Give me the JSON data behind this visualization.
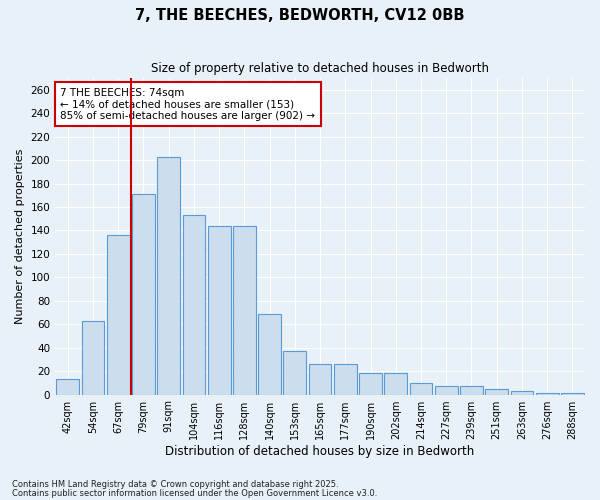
{
  "title1": "7, THE BEECHES, BEDWORTH, CV12 0BB",
  "title2": "Size of property relative to detached houses in Bedworth",
  "xlabel": "Distribution of detached houses by size in Bedworth",
  "ylabel": "Number of detached properties",
  "bar_labels": [
    "42sqm",
    "54sqm",
    "67sqm",
    "79sqm",
    "91sqm",
    "104sqm",
    "116sqm",
    "128sqm",
    "140sqm",
    "153sqm",
    "165sqm",
    "177sqm",
    "190sqm",
    "202sqm",
    "214sqm",
    "227sqm",
    "239sqm",
    "251sqm",
    "263sqm",
    "276sqm",
    "288sqm"
  ],
  "bar_values": [
    13,
    63,
    136,
    171,
    203,
    153,
    144,
    144,
    69,
    37,
    26,
    26,
    18,
    18,
    10,
    7,
    7,
    5,
    3,
    1,
    1
  ],
  "bar_color": "#ccdded",
  "bar_edge_color": "#5b9bd5",
  "vline_pos": 2.5,
  "annotation_line1": "7 THE BEECHES: 74sqm",
  "annotation_line2": "← 14% of detached houses are smaller (153)",
  "annotation_line3": "85% of semi-detached houses are larger (902) →",
  "annotation_box_facecolor": "#ffffff",
  "annotation_box_edgecolor": "#cc0000",
  "vline_color": "#cc0000",
  "ylim": [
    0,
    270
  ],
  "yticks": [
    0,
    20,
    40,
    60,
    80,
    100,
    120,
    140,
    160,
    180,
    200,
    220,
    240,
    260
  ],
  "footnote1": "Contains HM Land Registry data © Crown copyright and database right 2025.",
  "footnote2": "Contains public sector information licensed under the Open Government Licence v3.0.",
  "bg_color": "#e8f0f8",
  "grid_color": "#ffffff"
}
